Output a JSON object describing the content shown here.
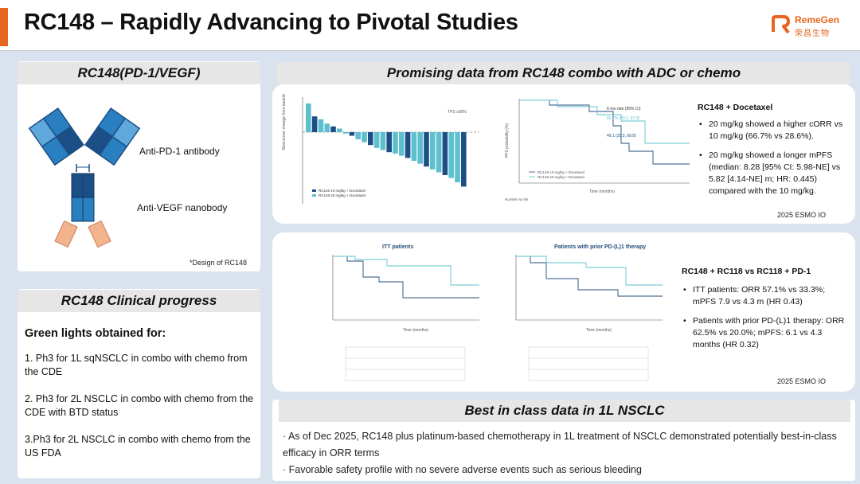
{
  "header": {
    "title": "RC148 – Rapidly Advancing to Pivotal Studies",
    "logo_en": "RemeGen",
    "logo_cn": "荣昌生物",
    "accent_color": "#e8651e"
  },
  "left": {
    "design_header": "RC148(PD-1/VEGF)",
    "anti_pd1_label": "Anti-PD-1 antibody",
    "anti_vegf_label": "Anti-VEGF nanobody",
    "design_caption": "*Design of RC148",
    "progress_header": "RC148 Clinical progress",
    "progress_title": "Green lights obtained for:",
    "progress_items": [
      "1. Ph3 for 1L sqNSCLC in combo with chemo from the CDE",
      "2. Ph3 for 2L NSCLC in combo with chemo from the CDE with BTD status",
      "3.Ph3 for 2L NSCLC in combo with chemo from the US FDA"
    ]
  },
  "right": {
    "top_header": "Promising data from RC148 combo with ADC or chemo",
    "docetaxel": {
      "title": "RC148 + Docetaxel",
      "bullets": [
        "20 mg/kg showed a higher cORR vs 10 mg/kg (66.7% vs 28.6%).",
        "20 mg/kg showed a longer mPFS (median: 8.28 [95% CI: 5.98-NE] vs 5.82 [4.14-NE] m; HR: 0.445) compared with the 10 mg/kg."
      ],
      "source": "2025 ESMO IO"
    },
    "rc118": {
      "title": "RC148 + RC118 vs RC118 + PD-1",
      "bullets": [
        "ITT patients: ORR 57.1% vs 33.3%; mPFS 7.9 vs 4.3 m (HR 0.43)",
        "Patients with prior PD-(L)1 therapy: ORR 62.5% vs 20.0%; mPFS: 6.1 vs 4.3 months (HR 0.32)"
      ],
      "source": "2025 ESMO IO"
    },
    "fig_labels": {
      "itt": "ITT patients",
      "prior": "Patients with prior PD-(L)1 therapy",
      "six_mo": "6-mo rate (95% CI)",
      "rate_a": "66.7% (30.2, 87.3)",
      "rate_b": "49.1 (25.9, 68.8)",
      "tps": "TPS ≥50%"
    },
    "best_header": "Best in class data in 1L NSCLC",
    "best_lines": [
      "· As of Dec 2025, RC148 plus platinum-based chemotherapy in 1L treatment of NSCLC demonstrated potentially best-in-class efficacy in ORR terms",
      "· Favorable safety profile with no severe adverse events such as serious bleeding"
    ]
  },
  "colors": {
    "light_blue": "#5fa8dc",
    "mid_blue": "#2a7fc0",
    "dark_blue": "#1c4f86",
    "tan": "#f2b38d",
    "teal": "#5ec0cf",
    "navy": "#1f4e79"
  }
}
